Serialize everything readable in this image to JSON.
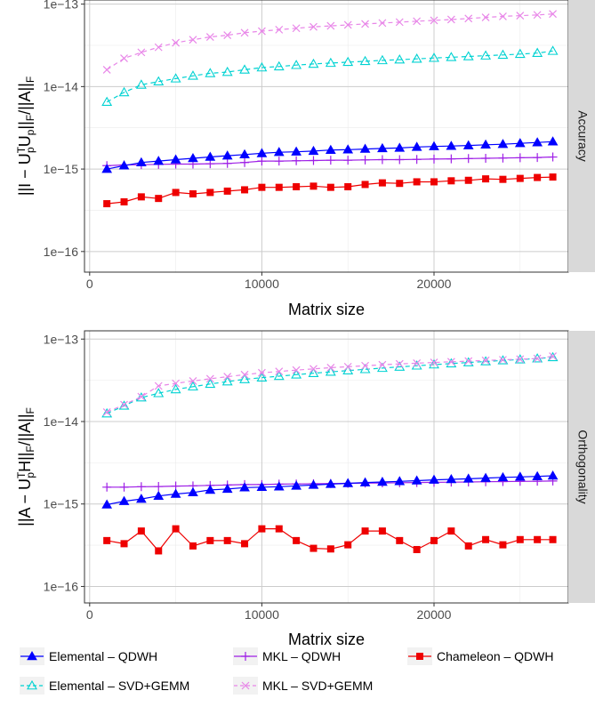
{
  "chart_data": [
    {
      "type": "line",
      "strip_label": "Accuracy",
      "xlabel": "Matrix size",
      "ylabel": "||I − U_p^T U_p||_F / ||A||_F",
      "yscale": "log",
      "xlim": [
        -300,
        27800
      ],
      "ylim_log10": [
        -16.25,
        -12.95
      ],
      "xticks": [
        0,
        10000,
        20000
      ],
      "xtick_labels": [
        "0",
        "10000",
        "20000"
      ],
      "yticks_log10": [
        -16,
        -15,
        -14,
        -13
      ],
      "ytick_labels": [
        "1e−16",
        "1e−15",
        "1e−14",
        "1e−13"
      ],
      "grid": true,
      "x": [
        1000,
        2000,
        3000,
        4000,
        5000,
        6000,
        7000,
        8000,
        9000,
        10000,
        11000,
        12000,
        13000,
        14000,
        15000,
        16000,
        17000,
        18000,
        19000,
        20000,
        21000,
        22000,
        23000,
        24000,
        25000,
        26000,
        26900
      ],
      "series": [
        {
          "name": "Elemental – QDWH",
          "values": [
            1e-15,
            1.1e-15,
            1.2e-15,
            1.25e-15,
            1.3e-15,
            1.35e-15,
            1.4e-15,
            1.45e-15,
            1.5e-15,
            1.55e-15,
            1.6e-15,
            1.62e-15,
            1.65e-15,
            1.7e-15,
            1.72e-15,
            1.75e-15,
            1.78e-15,
            1.8e-15,
            1.85e-15,
            1.88e-15,
            1.9e-15,
            1.93e-15,
            1.97e-15,
            2e-15,
            2.05e-15,
            2.1e-15,
            2.15e-15
          ]
        },
        {
          "name": "MKL – QDWH",
          "values": [
            1.1e-15,
            1.12e-15,
            1.13e-15,
            1.14e-15,
            1.15e-15,
            1.15e-15,
            1.16e-15,
            1.17e-15,
            1.2e-15,
            1.25e-15,
            1.25e-15,
            1.26e-15,
            1.27e-15,
            1.28e-15,
            1.28e-15,
            1.29e-15,
            1.3e-15,
            1.3e-15,
            1.31e-15,
            1.32e-15,
            1.33e-15,
            1.34e-15,
            1.35e-15,
            1.36e-15,
            1.37e-15,
            1.38e-15,
            1.4e-15
          ]
        },
        {
          "name": "Chameleon – QDWH",
          "values": [
            3.8e-16,
            4e-16,
            4.6e-16,
            4.4e-16,
            5.2e-16,
            5e-16,
            5.2e-16,
            5.4e-16,
            5.6e-16,
            6e-16,
            6e-16,
            6.1e-16,
            6.2e-16,
            6e-16,
            6.1e-16,
            6.5e-16,
            6.8e-16,
            6.7e-16,
            7e-16,
            7e-16,
            7.2e-16,
            7.3e-16,
            7.6e-16,
            7.5e-16,
            7.7e-16,
            7.9e-16,
            8e-16
          ]
        },
        {
          "name": "Elemental – SVD+GEMM",
          "values": [
            6.5e-15,
            8.5e-15,
            1.05e-14,
            1.15e-14,
            1.25e-14,
            1.35e-14,
            1.45e-14,
            1.5e-14,
            1.6e-14,
            1.7e-14,
            1.75e-14,
            1.82e-14,
            1.88e-14,
            1.93e-14,
            1.98e-14,
            2.03e-14,
            2.08e-14,
            2.12e-14,
            2.17e-14,
            2.22e-14,
            2.27e-14,
            2.32e-14,
            2.37e-14,
            2.42e-14,
            2.48e-14,
            2.55e-14,
            2.7e-14
          ]
        },
        {
          "name": "MKL – SVD+GEMM",
          "values": [
            1.6e-14,
            2.2e-14,
            2.6e-14,
            3e-14,
            3.4e-14,
            3.7e-14,
            4e-14,
            4.2e-14,
            4.5e-14,
            4.7e-14,
            4.9e-14,
            5.1e-14,
            5.3e-14,
            5.45e-14,
            5.6e-14,
            5.75e-14,
            5.9e-14,
            6.05e-14,
            6.2e-14,
            6.35e-14,
            6.5e-14,
            6.7e-14,
            6.9e-14,
            7.1e-14,
            7.25e-14,
            7.4e-14,
            7.6e-14
          ]
        }
      ]
    },
    {
      "type": "line",
      "strip_label": "Orthogonality",
      "xlabel": "Matrix size",
      "ylabel": "||A − U_p^T H||_F / ||A||_F",
      "yscale": "log",
      "xlim": [
        -300,
        27800
      ],
      "ylim_log10": [
        -16.2,
        -12.9
      ],
      "xticks": [
        0,
        10000,
        20000
      ],
      "xtick_labels": [
        "0",
        "10000",
        "20000"
      ],
      "yticks_log10": [
        -16,
        -15,
        -14,
        -13
      ],
      "ytick_labels": [
        "1e−16",
        "1e−15",
        "1e−14",
        "1e−13"
      ],
      "grid": true,
      "x": [
        1000,
        2000,
        3000,
        4000,
        5000,
        6000,
        7000,
        8000,
        9000,
        10000,
        11000,
        12000,
        13000,
        14000,
        15000,
        16000,
        17000,
        18000,
        19000,
        20000,
        21000,
        22000,
        23000,
        24000,
        25000,
        26000,
        26900
      ],
      "series": [
        {
          "name": "Elemental – QDWH",
          "values": [
            9.8e-16,
            1.08e-15,
            1.15e-15,
            1.25e-15,
            1.32e-15,
            1.38e-15,
            1.48e-15,
            1.52e-15,
            1.58e-15,
            1.6e-15,
            1.62e-15,
            1.66e-15,
            1.7e-15,
            1.74e-15,
            1.78e-15,
            1.82e-15,
            1.85e-15,
            1.88e-15,
            1.92e-15,
            1.96e-15,
            1.99e-15,
            2.02e-15,
            2.06e-15,
            2.1e-15,
            2.13e-15,
            2.16e-15,
            2.2e-15
          ]
        },
        {
          "name": "MKL – QDWH",
          "values": [
            1.6e-15,
            1.6e-15,
            1.62e-15,
            1.63e-15,
            1.65e-15,
            1.66e-15,
            1.68e-15,
            1.7e-15,
            1.72e-15,
            1.72e-15,
            1.74e-15,
            1.75e-15,
            1.76e-15,
            1.77e-15,
            1.78e-15,
            1.79e-15,
            1.8e-15,
            1.81e-15,
            1.82e-15,
            1.83e-15,
            1.84e-15,
            1.85e-15,
            1.86e-15,
            1.87e-15,
            1.88e-15,
            1.89e-15,
            1.9e-15
          ]
        },
        {
          "name": "Chameleon – QDWH",
          "values": [
            3.6e-16,
            3.3e-16,
            4.7e-16,
            2.7e-16,
            5e-16,
            3.1e-16,
            3.6e-16,
            3.6e-16,
            3.3e-16,
            5e-16,
            5e-16,
            3.6e-16,
            2.9e-16,
            2.85e-16,
            3.2e-16,
            4.7e-16,
            4.7e-16,
            3.6e-16,
            2.8e-16,
            3.6e-16,
            4.7e-16,
            3.1e-16,
            3.7e-16,
            3.2e-16,
            3.7e-16,
            3.7e-16,
            3.7e-16
          ]
        },
        {
          "name": "Elemental – SVD+GEMM",
          "values": [
            1.25e-14,
            1.55e-14,
            1.95e-14,
            2.2e-14,
            2.45e-14,
            2.65e-14,
            2.85e-14,
            3.05e-14,
            3.25e-14,
            3.4e-14,
            3.55e-14,
            3.7e-14,
            3.85e-14,
            4e-14,
            4.15e-14,
            4.3e-14,
            4.45e-14,
            4.6e-14,
            4.75e-14,
            4.9e-14,
            5.05e-14,
            5.2e-14,
            5.35e-14,
            5.5e-14,
            5.65e-14,
            5.8e-14,
            6e-14
          ]
        },
        {
          "name": "MKL – SVD+GEMM",
          "values": [
            1.3e-14,
            1.6e-14,
            2e-14,
            2.7e-14,
            2.9e-14,
            3.1e-14,
            3.3e-14,
            3.5e-14,
            3.7e-14,
            3.9e-14,
            4.05e-14,
            4.2e-14,
            4.35e-14,
            4.5e-14,
            4.62e-14,
            4.75e-14,
            4.88e-14,
            5e-14,
            5.1e-14,
            5.2e-14,
            5.3e-14,
            5.4e-14,
            5.5e-14,
            5.6e-14,
            5.7e-14,
            5.8e-14,
            6.2e-14
          ]
        }
      ]
    }
  ],
  "legend": {
    "placement": "bottom",
    "items": [
      {
        "label": "Elemental – QDWH",
        "color": "#0000ff",
        "marker": "filled-triangle"
      },
      {
        "label": "MKL – QDWH",
        "color": "#9e1fe6",
        "marker": "plus"
      },
      {
        "label": "Chameleon – QDWH",
        "color": "#ee0000",
        "marker": "filled-square"
      },
      {
        "label": "Elemental – SVD+GEMM",
        "color": "#00d2d2",
        "marker": "open-triangle"
      },
      {
        "label": "MKL – SVD+GEMM",
        "color": "#e886e8",
        "marker": "cross"
      }
    ]
  },
  "colors": {
    "strip_background": "#d9d9d9",
    "grid": "#cccccc",
    "panel_border": "#333333"
  }
}
